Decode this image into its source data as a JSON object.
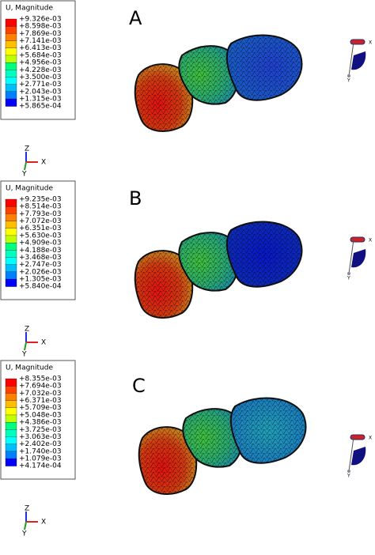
{
  "panels": [
    {
      "label": "A",
      "legend_title": "U, Magnitude",
      "legend_values": [
        "+9.326e-03",
        "+8.598e-03",
        "+7.869e-03",
        "+7.141e-03",
        "+6.413e-03",
        "+5.684e-03",
        "+4.956e-03",
        "+4.228e-03",
        "+3.500e-03",
        "+2.771e-03",
        "+2.043e-03",
        "+1.315e-03",
        "+5.865e-04"
      ],
      "triad": [
        "Z",
        "X",
        "Y"
      ],
      "icon_labels": [
        "X",
        "Y"
      ]
    },
    {
      "label": "B",
      "legend_title": "U, Magnitude",
      "legend_values": [
        "+9.235e-03",
        "+8.514e-03",
        "+7.793e-03",
        "+7.072e-03",
        "+6.351e-03",
        "+5.630e-03",
        "+4.909e-03",
        "+4.188e-03",
        "+3.468e-03",
        "+2.747e-03",
        "+2.026e-03",
        "+1.305e-03",
        "+5.840e-04"
      ],
      "triad": [
        "Z",
        "X",
        "Y"
      ],
      "icon_labels": [
        "X",
        "Y"
      ]
    },
    {
      "label": "C",
      "legend_title": "U, Magnitude",
      "legend_values": [
        "+8.355e-03",
        "+7.694e-03",
        "+7.032e-03",
        "+6.371e-03",
        "+5.709e-03",
        "+5.048e-03",
        "+4.386e-03",
        "+3.725e-03",
        "+3.063e-03",
        "+2.402e-03",
        "+1.740e-03",
        "+1.079e-03",
        "+4.174e-04"
      ],
      "triad": [
        "Z",
        "X",
        "Y"
      ],
      "icon_labels": [
        "X",
        "Y"
      ]
    }
  ]
}
